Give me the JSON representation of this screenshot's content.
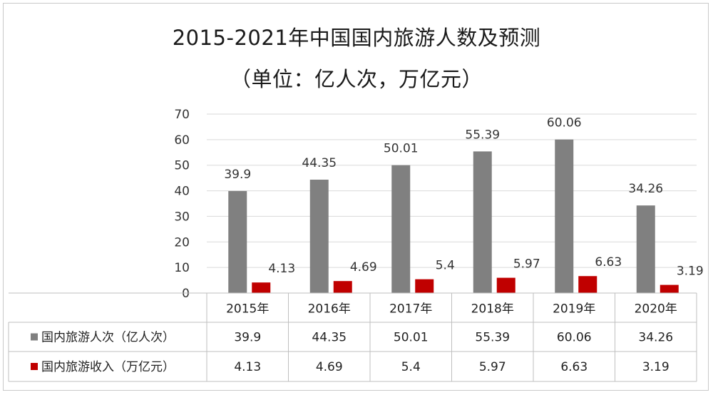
{
  "chart_data": {
    "type": "bar",
    "title": "2015-2021年中国国内旅游人数及预测",
    "subtitle": "（单位：亿人次，万亿元）",
    "categories": [
      "2015年",
      "2016年",
      "2017年",
      "2018年",
      "2019年",
      "2020年"
    ],
    "ylim": [
      0,
      70
    ],
    "yticks": [
      0,
      10,
      20,
      30,
      40,
      50,
      60,
      70
    ],
    "grid": true,
    "legend": "data-table",
    "series": [
      {
        "name": "国内旅游人次（亿人次）",
        "color": "#808080",
        "values": [
          39.9,
          44.35,
          50.01,
          55.39,
          60.06,
          34.26
        ],
        "labels": [
          "39.9",
          "44.35",
          "50.01",
          "55.39",
          "60.06",
          "34.26"
        ]
      },
      {
        "name": "国内旅游收入（万亿元）",
        "color": "#c00000",
        "values": [
          4.13,
          4.69,
          5.4,
          5.97,
          6.63,
          3.19
        ],
        "labels": [
          "4.13",
          "4.69",
          "5.4",
          "5.97",
          "6.63",
          "3.19"
        ]
      }
    ]
  }
}
